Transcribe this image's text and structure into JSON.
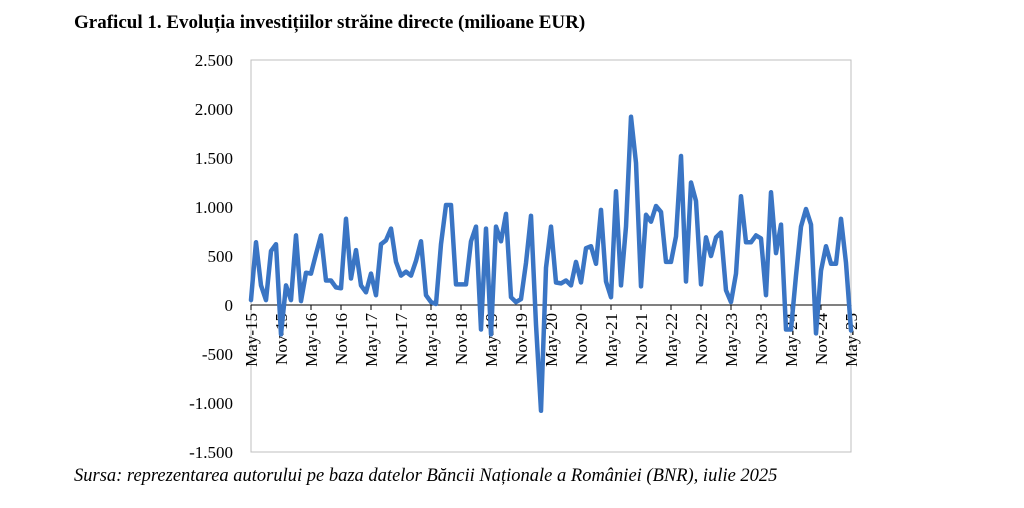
{
  "title": "Graficul 1. Evoluția investițiilor străine directe (milioane EUR)",
  "source": "Sursa: reprezentarea autorului pe baza datelor Băncii Naționale a României (BNR), iulie 2025",
  "chart_data": {
    "type": "line",
    "title": "Graficul 1. Evoluția investițiilor străine directe (milioane EUR)",
    "xlabel": "",
    "ylabel": "",
    "ylim": [
      -1500,
      2500
    ],
    "yticks": [
      -1500,
      -1000,
      -500,
      0,
      500,
      1000,
      1500,
      2000,
      2500
    ],
    "ytick_labels": [
      "-1.500",
      "-1.000",
      "-500",
      "0",
      "500",
      "1.000",
      "1.500",
      "2.000",
      "2.500"
    ],
    "xtick_labels": [
      "May-15",
      "Nov-15",
      "May-16",
      "Nov-16",
      "May-17",
      "Nov-17",
      "May-18",
      "Nov-18",
      "May-19",
      "Nov-19",
      "May-20",
      "Nov-20",
      "May-21",
      "Nov-21",
      "May-22",
      "Nov-22",
      "May-23",
      "Nov-23",
      "May-24",
      "Nov-24",
      "May-25"
    ],
    "grid": false,
    "color": "#3a75c4",
    "series": [
      {
        "values": [
          50,
          640,
          200,
          50,
          550,
          620,
          -300,
          200,
          50,
          710,
          40,
          330,
          320,
          520,
          710,
          250,
          250,
          180,
          170,
          880,
          270,
          560,
          200,
          130,
          320,
          100,
          620,
          660,
          780,
          440,
          300,
          340,
          300,
          450,
          650,
          100,
          30,
          10,
          620,
          1020,
          1020,
          210,
          210,
          210,
          650,
          800,
          -250,
          780,
          -300,
          800,
          650,
          930,
          80,
          30,
          60,
          430,
          910,
          -200,
          -1080,
          380,
          800,
          230,
          220,
          250,
          200,
          440,
          230,
          580,
          600,
          420,
          970,
          240,
          80,
          1160,
          200,
          800,
          1920,
          1450,
          190,
          920,
          850,
          1010,
          950,
          440,
          440,
          700,
          1520,
          240,
          1250,
          1060,
          210,
          690,
          500,
          690,
          740,
          150,
          30,
          320,
          1110,
          640,
          640,
          710,
          680,
          100,
          1150,
          530,
          820,
          -250,
          -250,
          300,
          800,
          980,
          820,
          -290,
          350,
          600,
          420,
          420,
          880,
          430,
          -260
        ]
      }
    ]
  }
}
